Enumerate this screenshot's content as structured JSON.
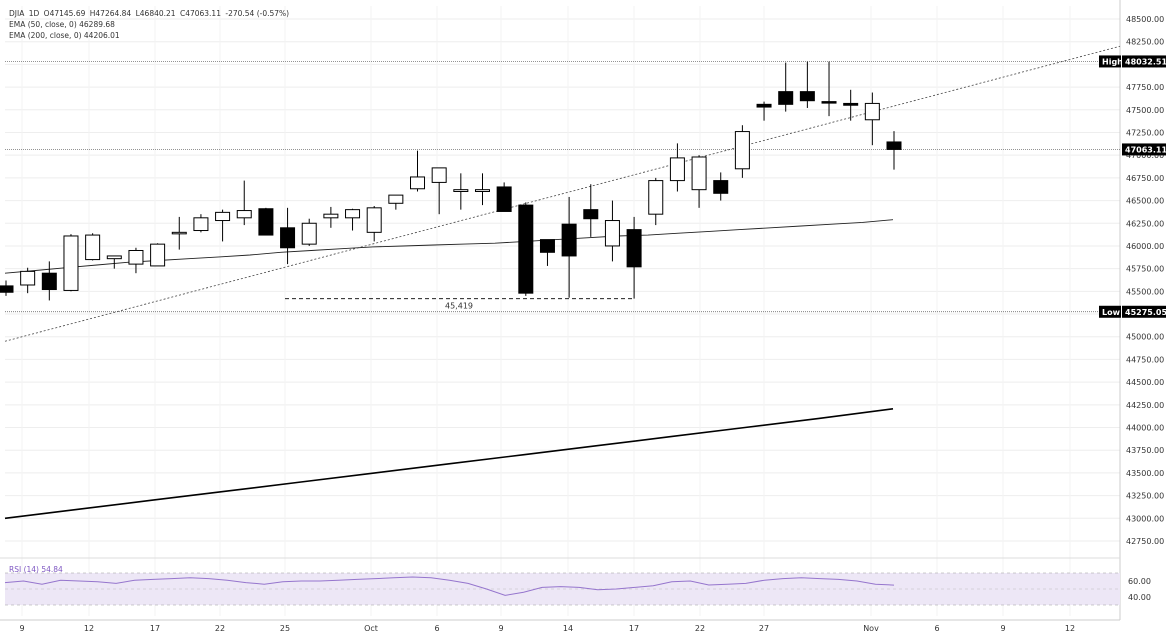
{
  "legend": {
    "symbol": "DJIA",
    "interval": "1D",
    "open": "O47145.69",
    "high": "H47264.84",
    "low": "L46840.21",
    "close": "C47063.11",
    "change": "-270.54 (-0.57%)",
    "ema50": "EMA (50, close, 0)  46289.68",
    "ema200": "EMA (200, close, 0)  44206.01",
    "rsi": "RSI (14)  54.84"
  },
  "tags": {
    "high_label": "High",
    "high_value": "48032.51",
    "last_value": "47063.11",
    "low_label": "Low",
    "low_value": "45275.05",
    "support_label": "45,419"
  },
  "colors": {
    "up": "#ffffff",
    "down": "#000000",
    "ema50": "#222222",
    "ema200": "#000000",
    "rsi_line": "#9575cd",
    "rsi_band": "#ede7f6"
  },
  "chart_data": {
    "type": "candlestick",
    "y_axis": {
      "min": 42500,
      "max": 48750,
      "ticks": [
        "48500.00",
        "48250.00",
        "48000.00",
        "47750.00",
        "47500.00",
        "47250.00",
        "47000.00",
        "46750.00",
        "46500.00",
        "46250.00",
        "46000.00",
        "45750.00",
        "45500.00",
        "45250.00",
        "45000.00",
        "44750.00",
        "44500.00",
        "44250.00",
        "44000.00",
        "43750.00",
        "43500.00",
        "43250.00",
        "43000.00",
        "42750.00"
      ]
    },
    "x_axis": {
      "labels": [
        "9",
        "12",
        "17",
        "22",
        "25",
        "Oct",
        "6",
        "9",
        "14",
        "17",
        "22",
        "27",
        "Nov",
        "6",
        "9",
        "12"
      ]
    },
    "candles": [
      {
        "o": 45560,
        "h": 45620,
        "l": 45450,
        "c": 45490
      },
      {
        "o": 45570,
        "h": 45760,
        "l": 45480,
        "c": 45720
      },
      {
        "o": 45700,
        "h": 45830,
        "l": 45400,
        "c": 45520
      },
      {
        "o": 45510,
        "h": 46130,
        "l": 45500,
        "c": 46110
      },
      {
        "o": 45850,
        "h": 46140,
        "l": 45840,
        "c": 46120
      },
      {
        "o": 45860,
        "h": 45890,
        "l": 45750,
        "c": 45890
      },
      {
        "o": 45800,
        "h": 45980,
        "l": 45700,
        "c": 45950
      },
      {
        "o": 45780,
        "h": 46030,
        "l": 45780,
        "c": 46020
      },
      {
        "o": 46150,
        "h": 46320,
        "l": 45960,
        "c": 46150
      },
      {
        "o": 46170,
        "h": 46350,
        "l": 46150,
        "c": 46310
      },
      {
        "o": 46280,
        "h": 46400,
        "l": 46050,
        "c": 46370
      },
      {
        "o": 46310,
        "h": 46720,
        "l": 46230,
        "c": 46390
      },
      {
        "o": 46410,
        "h": 46420,
        "l": 46120,
        "c": 46120
      },
      {
        "o": 46200,
        "h": 46420,
        "l": 45800,
        "c": 45980
      },
      {
        "o": 46020,
        "h": 46300,
        "l": 46000,
        "c": 46250
      },
      {
        "o": 46310,
        "h": 46430,
        "l": 46200,
        "c": 46350
      },
      {
        "o": 46310,
        "h": 46410,
        "l": 46170,
        "c": 46400
      },
      {
        "o": 46150,
        "h": 46440,
        "l": 46050,
        "c": 46420
      },
      {
        "o": 46470,
        "h": 46560,
        "l": 46400,
        "c": 46560
      },
      {
        "o": 46630,
        "h": 47050,
        "l": 46600,
        "c": 46760
      },
      {
        "o": 46700,
        "h": 46850,
        "l": 46350,
        "c": 46860
      },
      {
        "o": 46600,
        "h": 46800,
        "l": 46400,
        "c": 46620
      },
      {
        "o": 46600,
        "h": 46800,
        "l": 46450,
        "c": 46620
      },
      {
        "o": 46650,
        "h": 46700,
        "l": 46400,
        "c": 46380
      },
      {
        "o": 46450,
        "h": 46480,
        "l": 45450,
        "c": 45480
      },
      {
        "o": 46070,
        "h": 46070,
        "l": 45780,
        "c": 45930
      },
      {
        "o": 46240,
        "h": 46540,
        "l": 45430,
        "c": 45890
      },
      {
        "o": 46400,
        "h": 46680,
        "l": 46100,
        "c": 46300
      },
      {
        "o": 46000,
        "h": 46500,
        "l": 45830,
        "c": 46280
      },
      {
        "o": 46180,
        "h": 46320,
        "l": 45420,
        "c": 45770
      },
      {
        "o": 46350,
        "h": 46750,
        "l": 46230,
        "c": 46720
      },
      {
        "o": 46720,
        "h": 47130,
        "l": 46600,
        "c": 46970
      },
      {
        "o": 46620,
        "h": 47000,
        "l": 46420,
        "c": 46980
      },
      {
        "o": 46720,
        "h": 46810,
        "l": 46500,
        "c": 46580
      },
      {
        "o": 46850,
        "h": 47330,
        "l": 46750,
        "c": 47260
      },
      {
        "o": 47560,
        "h": 47590,
        "l": 47380,
        "c": 47530
      },
      {
        "o": 47700,
        "h": 48020,
        "l": 47480,
        "c": 47560
      },
      {
        "o": 47700,
        "h": 48030,
        "l": 47520,
        "c": 47600
      },
      {
        "o": 47590,
        "h": 48030,
        "l": 47430,
        "c": 47580
      },
      {
        "o": 47570,
        "h": 47720,
        "l": 47380,
        "c": 47550
      },
      {
        "o": 47390,
        "h": 47690,
        "l": 47110,
        "c": 47570
      },
      {
        "o": 47145.69,
        "h": 47264.84,
        "l": 46840.21,
        "c": 47063.11
      }
    ],
    "ema50": [
      45700,
      45730,
      45760,
      45790,
      45820,
      45840,
      45860,
      45880,
      45900,
      45930,
      45950,
      45970,
      45990,
      46000,
      46010,
      46020,
      46030,
      46050,
      46070,
      46090,
      46110,
      46120,
      46140,
      46160,
      46180,
      46200,
      46220,
      46240,
      46260,
      46289.68
    ],
    "ema200": [
      43000,
      43100,
      43200,
      43300,
      43400,
      43500,
      43600,
      43700,
      43800,
      43900,
      44000,
      44100,
      44206.01
    ],
    "trendline": {
      "from": 44950,
      "to": 48200
    },
    "support": {
      "value": 45419
    },
    "high": 48032.51,
    "low": 45275.05,
    "last": 47063.11,
    "rsi": {
      "ticks": [
        "60.00",
        "40.00"
      ],
      "values": [
        58,
        60,
        56,
        61,
        60,
        59,
        57,
        61,
        62,
        63,
        64,
        63,
        61,
        58,
        56,
        59,
        60,
        60,
        61,
        62,
        63,
        64,
        65,
        64,
        61,
        57,
        50,
        42,
        46,
        52,
        53,
        52,
        49,
        50,
        52,
        54,
        59,
        60,
        55,
        56,
        57,
        61,
        63,
        64,
        63,
        62,
        60,
        56,
        54.84
      ]
    }
  }
}
